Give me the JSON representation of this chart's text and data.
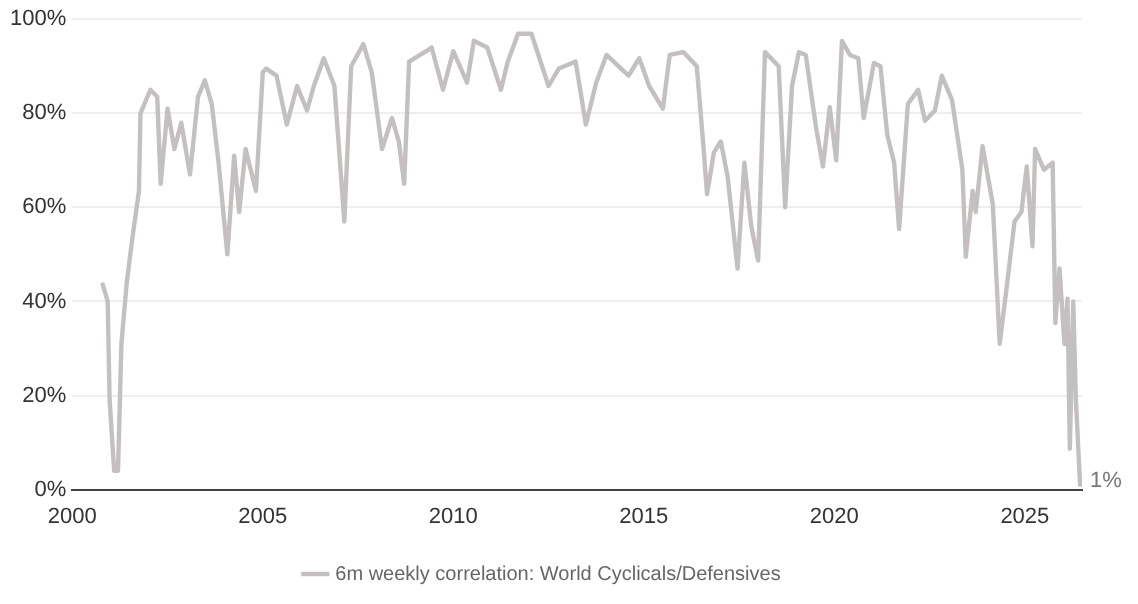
{
  "chart_data": {
    "type": "line",
    "x": [
      2000.8,
      2000.93,
      2000.98,
      2001.1,
      2001.2,
      2001.29,
      2001.43,
      2001.57,
      2001.75,
      2001.79,
      2002.05,
      2002.23,
      2002.32,
      2002.5,
      2002.68,
      2002.86,
      2003.09,
      2003.3,
      2003.48,
      2003.66,
      2003.84,
      2004.07,
      2004.25,
      2004.38,
      2004.55,
      2004.82,
      2005.0,
      2005.09,
      2005.36,
      2005.63,
      2005.9,
      2006.16,
      2006.34,
      2006.6,
      2006.88,
      2007.14,
      2007.32,
      2007.64,
      2007.86,
      2008.13,
      2008.39,
      2008.57,
      2008.71,
      2008.84,
      2009.29,
      2009.43,
      2009.73,
      2010.0,
      2010.36,
      2010.54,
      2010.89,
      2011.25,
      2011.43,
      2011.7,
      2012.05,
      2012.5,
      2012.77,
      2013.21,
      2013.48,
      2013.75,
      2014.02,
      2014.6,
      2014.88,
      2015.14,
      2015.5,
      2015.68,
      2016.04,
      2016.39,
      2016.57,
      2016.66,
      2016.84,
      2017.02,
      2017.2,
      2017.46,
      2017.64,
      2017.82,
      2018.0,
      2018.18,
      2018.54,
      2018.71,
      2018.89,
      2019.07,
      2019.25,
      2019.52,
      2019.7,
      2019.88,
      2020.05,
      2020.2,
      2020.41,
      2020.63,
      2020.77,
      2021.04,
      2021.21,
      2021.39,
      2021.57,
      2021.7,
      2021.93,
      2022.2,
      2022.38,
      2022.64,
      2022.82,
      2023.09,
      2023.36,
      2023.45,
      2023.63,
      2023.71,
      2023.89,
      2024.16,
      2024.34,
      2024.52,
      2024.73,
      2024.91,
      2025.05,
      2025.2,
      2025.27,
      2025.5,
      2025.73,
      2025.8,
      2025.91,
      2026.04,
      2026.12,
      2026.18,
      2026.27,
      2026.34,
      2026.45
    ],
    "series": [
      {
        "name": "6m weekly correlation: World Cyclicals/Defensives",
        "color": "#c4c0c0",
        "values": [
          43.6,
          40,
          19,
          4,
          4,
          31,
          44,
          53,
          63.5,
          80,
          85,
          83.5,
          65,
          81,
          72.4,
          78,
          67,
          83.5,
          87,
          82,
          69.5,
          50,
          71,
          59,
          72.4,
          63.5,
          88.7,
          89.5,
          88,
          77.6,
          85.8,
          80.6,
          85.8,
          91.7,
          85.8,
          57,
          90,
          94.7,
          88.7,
          72.4,
          79,
          74,
          65,
          91,
          93.2,
          94,
          85,
          93.2,
          86.5,
          95.4,
          94,
          85,
          91,
          96.9,
          96.9,
          85.8,
          89.5,
          91,
          77.6,
          86.5,
          92.4,
          88,
          91.7,
          85.8,
          81,
          92.4,
          93,
          90,
          72.4,
          62.8,
          71.7,
          74,
          66.5,
          47,
          69.5,
          56,
          48.7,
          93,
          90,
          60,
          85.8,
          93,
          92.4,
          77,
          68.7,
          81.3,
          70,
          95.4,
          92.4,
          91.7,
          79,
          90.7,
          90,
          75.4,
          69.5,
          55.4,
          82,
          85,
          78.4,
          80.6,
          88,
          82.8,
          68,
          49.5,
          63.5,
          59,
          73,
          60.6,
          31,
          42.8,
          57,
          59,
          68.7,
          51.7,
          72.4,
          68,
          69.5,
          35.4,
          47,
          31,
          40.6,
          8.7,
          40,
          19,
          1
        ]
      }
    ],
    "xlim": [
      2000,
      2026.5
    ],
    "xticks": [
      2000,
      2005,
      2010,
      2015,
      2020,
      2025
    ],
    "ylim": [
      0,
      100
    ],
    "yticks": [
      {
        "value": 0,
        "label": "0%"
      },
      {
        "value": 20,
        "label": "20%"
      },
      {
        "value": 40,
        "label": "40%"
      },
      {
        "value": 60,
        "label": "60%"
      },
      {
        "value": 80,
        "label": "80%"
      },
      {
        "value": 100,
        "label": "100%"
      }
    ],
    "grid": "y",
    "legend": "bottom",
    "marker": "none",
    "line_style": "solid",
    "annotations": [
      {
        "text": "1%",
        "x": 2026.45,
        "y": 1
      }
    ]
  }
}
